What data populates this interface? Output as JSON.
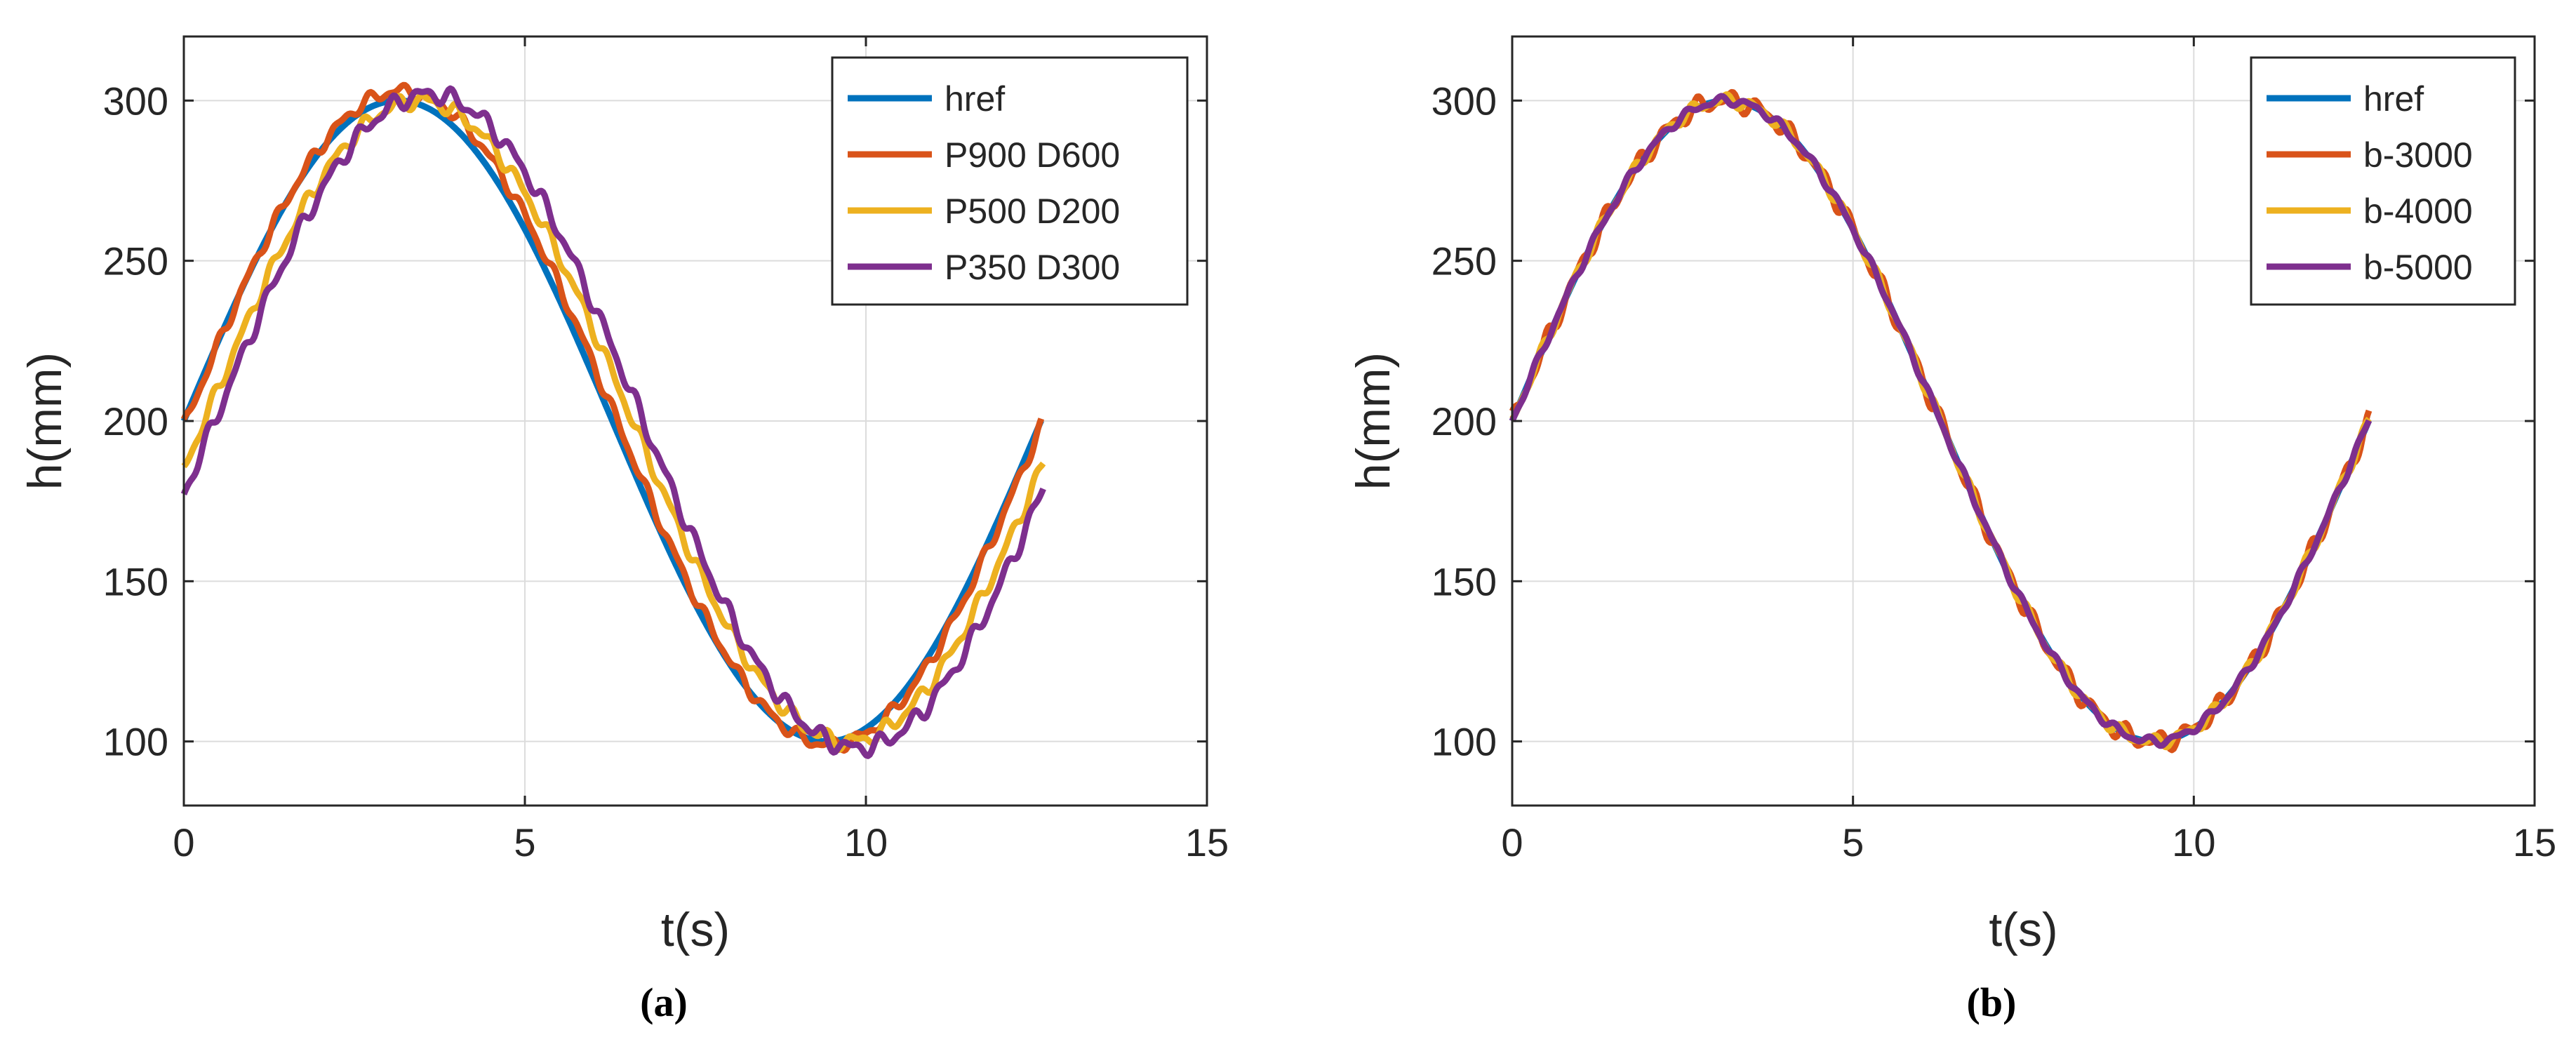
{
  "chart_data": [
    {
      "type": "line",
      "caption": "(a)",
      "xlabel": "t(s)",
      "ylabel": "h(mm)",
      "xlim": [
        0,
        15
      ],
      "ylim": [
        80,
        320
      ],
      "xticks": [
        0,
        5,
        10,
        15
      ],
      "yticks": [
        100,
        150,
        200,
        250,
        300
      ],
      "grid": true,
      "legend_position": "top-right",
      "series": [
        {
          "name": "href",
          "color": "#0072BD",
          "start": 0.0,
          "amplitude": 100,
          "offset": 200,
          "omega": 0.5,
          "lag": 0.0,
          "t_end": 12.57,
          "wobble": 0,
          "min_dip": 0
        },
        {
          "name": "P900 D600",
          "color": "#D95319",
          "start": 0.0,
          "amplitude": 102,
          "offset": 201,
          "omega": 0.5,
          "lag": 0.05,
          "t_end": 12.57,
          "wobble": 1.5,
          "min_dip": 0
        },
        {
          "name": "P500 D200",
          "color": "#EDB120",
          "start": 0.0,
          "amplitude": 100,
          "offset": 200,
          "omega": 0.5,
          "lag": 0.3,
          "t_end": 12.6,
          "wobble": 1.8,
          "min_dip": 0
        },
        {
          "name": "P350 D300",
          "color": "#7E2F8E",
          "start": 0.0,
          "amplitude": 102,
          "offset": 200,
          "omega": 0.5,
          "lag": 0.45,
          "t_end": 12.6,
          "wobble": 2.0,
          "min_dip": 0
        }
      ]
    },
    {
      "type": "line",
      "caption": "(b)",
      "xlabel": "t(s)",
      "ylabel": "h(mm)",
      "xlim": [
        0,
        15
      ],
      "ylim": [
        80,
        320
      ],
      "xticks": [
        0,
        5,
        10,
        15
      ],
      "yticks": [
        100,
        150,
        200,
        250,
        300
      ],
      "grid": true,
      "legend_position": "top-right",
      "series": [
        {
          "name": "href",
          "color": "#0072BD",
          "start": 0.0,
          "amplitude": 100,
          "offset": 200,
          "omega": 0.5,
          "lag": 0.0,
          "t_end": 12.57,
          "wobble": 0,
          "min_dip": 0
        },
        {
          "name": "b-3000",
          "color": "#D95319",
          "start": 0.0,
          "amplitude": 100,
          "offset": 200,
          "omega": 0.5,
          "lag": 0.0,
          "t_end": 12.57,
          "wobble": 2.2,
          "min_dip": 0
        },
        {
          "name": "b-4000",
          "color": "#EDB120",
          "start": 0.0,
          "amplitude": 100,
          "offset": 200,
          "omega": 0.5,
          "lag": 0.0,
          "t_end": 12.57,
          "wobble": 1.4,
          "min_dip": 0
        },
        {
          "name": "b-5000",
          "color": "#7E2F8E",
          "start": 0.0,
          "amplitude": 100,
          "offset": 200,
          "omega": 0.5,
          "lag": 0.0,
          "t_end": 12.57,
          "wobble": 1.0,
          "min_dip": 0
        }
      ]
    }
  ]
}
